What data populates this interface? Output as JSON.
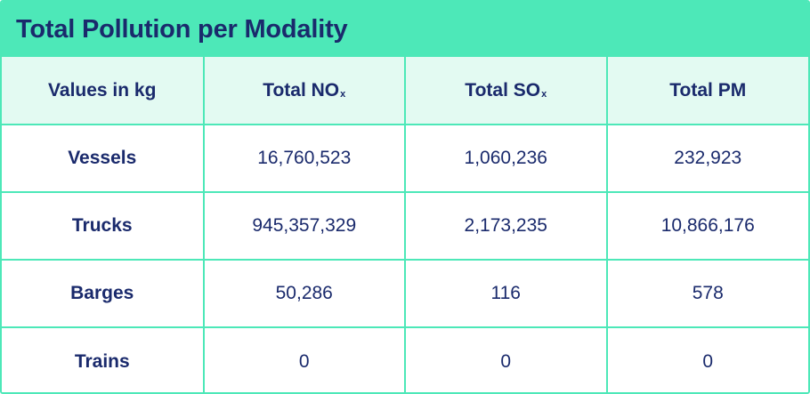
{
  "title": "Total Pollution per Modality",
  "colors": {
    "accent": "#4de8b8",
    "header_bg": "#e3faf2",
    "text": "#1a2a6c"
  },
  "table": {
    "headers": [
      {
        "label": "Values in kg",
        "sub": ""
      },
      {
        "label": "Total NO",
        "sub": "x"
      },
      {
        "label": "Total SO",
        "sub": "x"
      },
      {
        "label": "Total PM",
        "sub": ""
      }
    ],
    "rows": [
      {
        "label": "Vessels",
        "values": [
          "16,760,523",
          "1,060,236",
          "232,923"
        ]
      },
      {
        "label": "Trucks",
        "values": [
          "945,357,329",
          "2,173,235",
          "10,866,176"
        ]
      },
      {
        "label": "Barges",
        "values": [
          "50,286",
          "116",
          "578"
        ]
      },
      {
        "label": "Trains",
        "values": [
          "0",
          "0",
          "0"
        ]
      }
    ]
  }
}
